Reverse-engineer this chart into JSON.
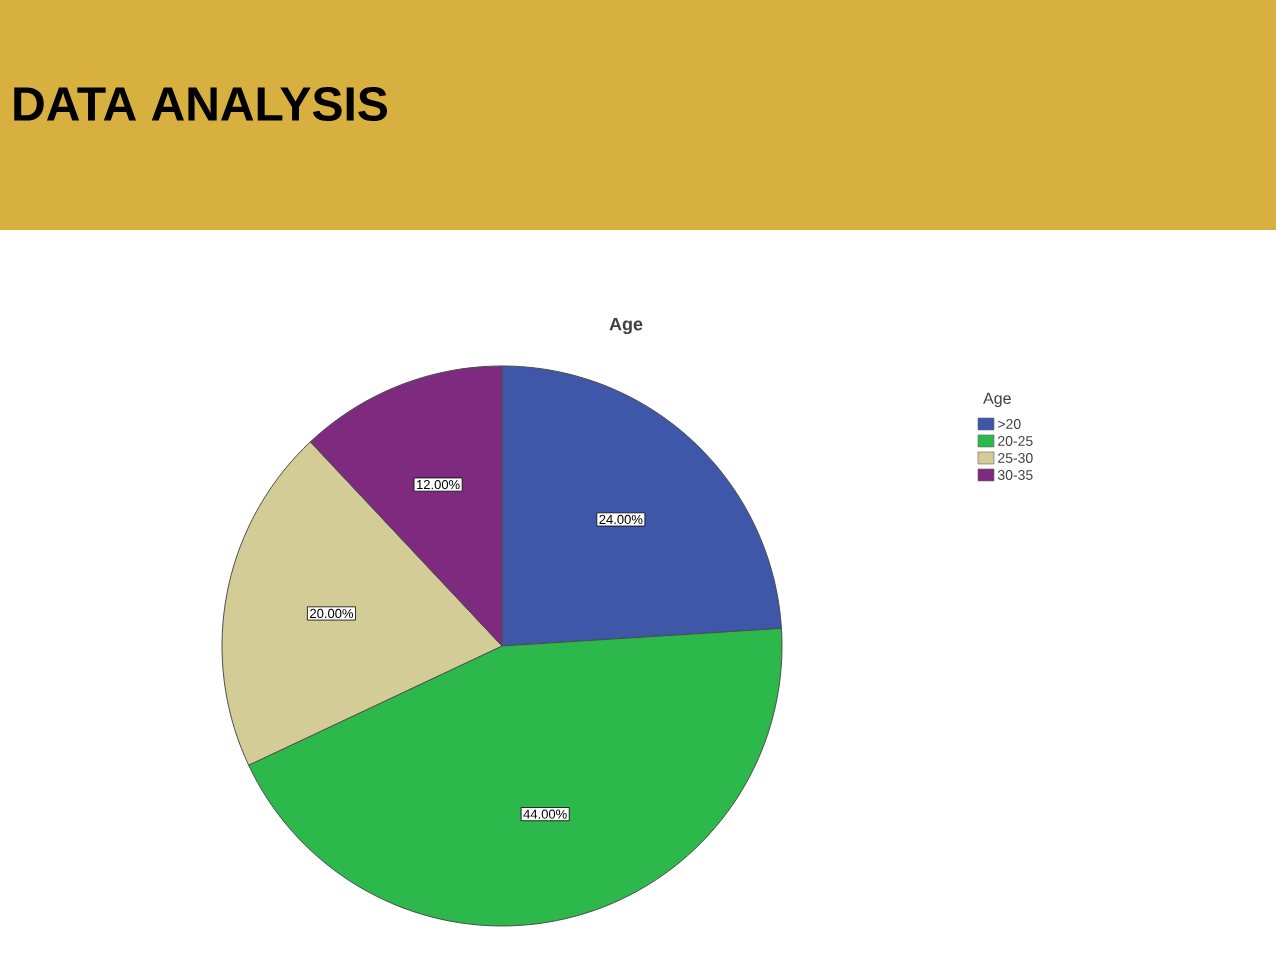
{
  "chart_data": {
    "type": "pie",
    "title": "DATA ANALYSIS",
    "subtitle": "Age",
    "legend_title": "Age",
    "categories": [
      ">20",
      "20-25",
      "25-30",
      "30-35"
    ],
    "values": [
      24,
      44,
      20,
      12
    ],
    "colors": [
      "#3f57a8",
      "#2db84b",
      "#d4cc96",
      "#7d2a7f"
    ],
    "value_labels": [
      "24.00%",
      "44.00%",
      "20.00%",
      "12.00%"
    ],
    "legend": "right"
  }
}
